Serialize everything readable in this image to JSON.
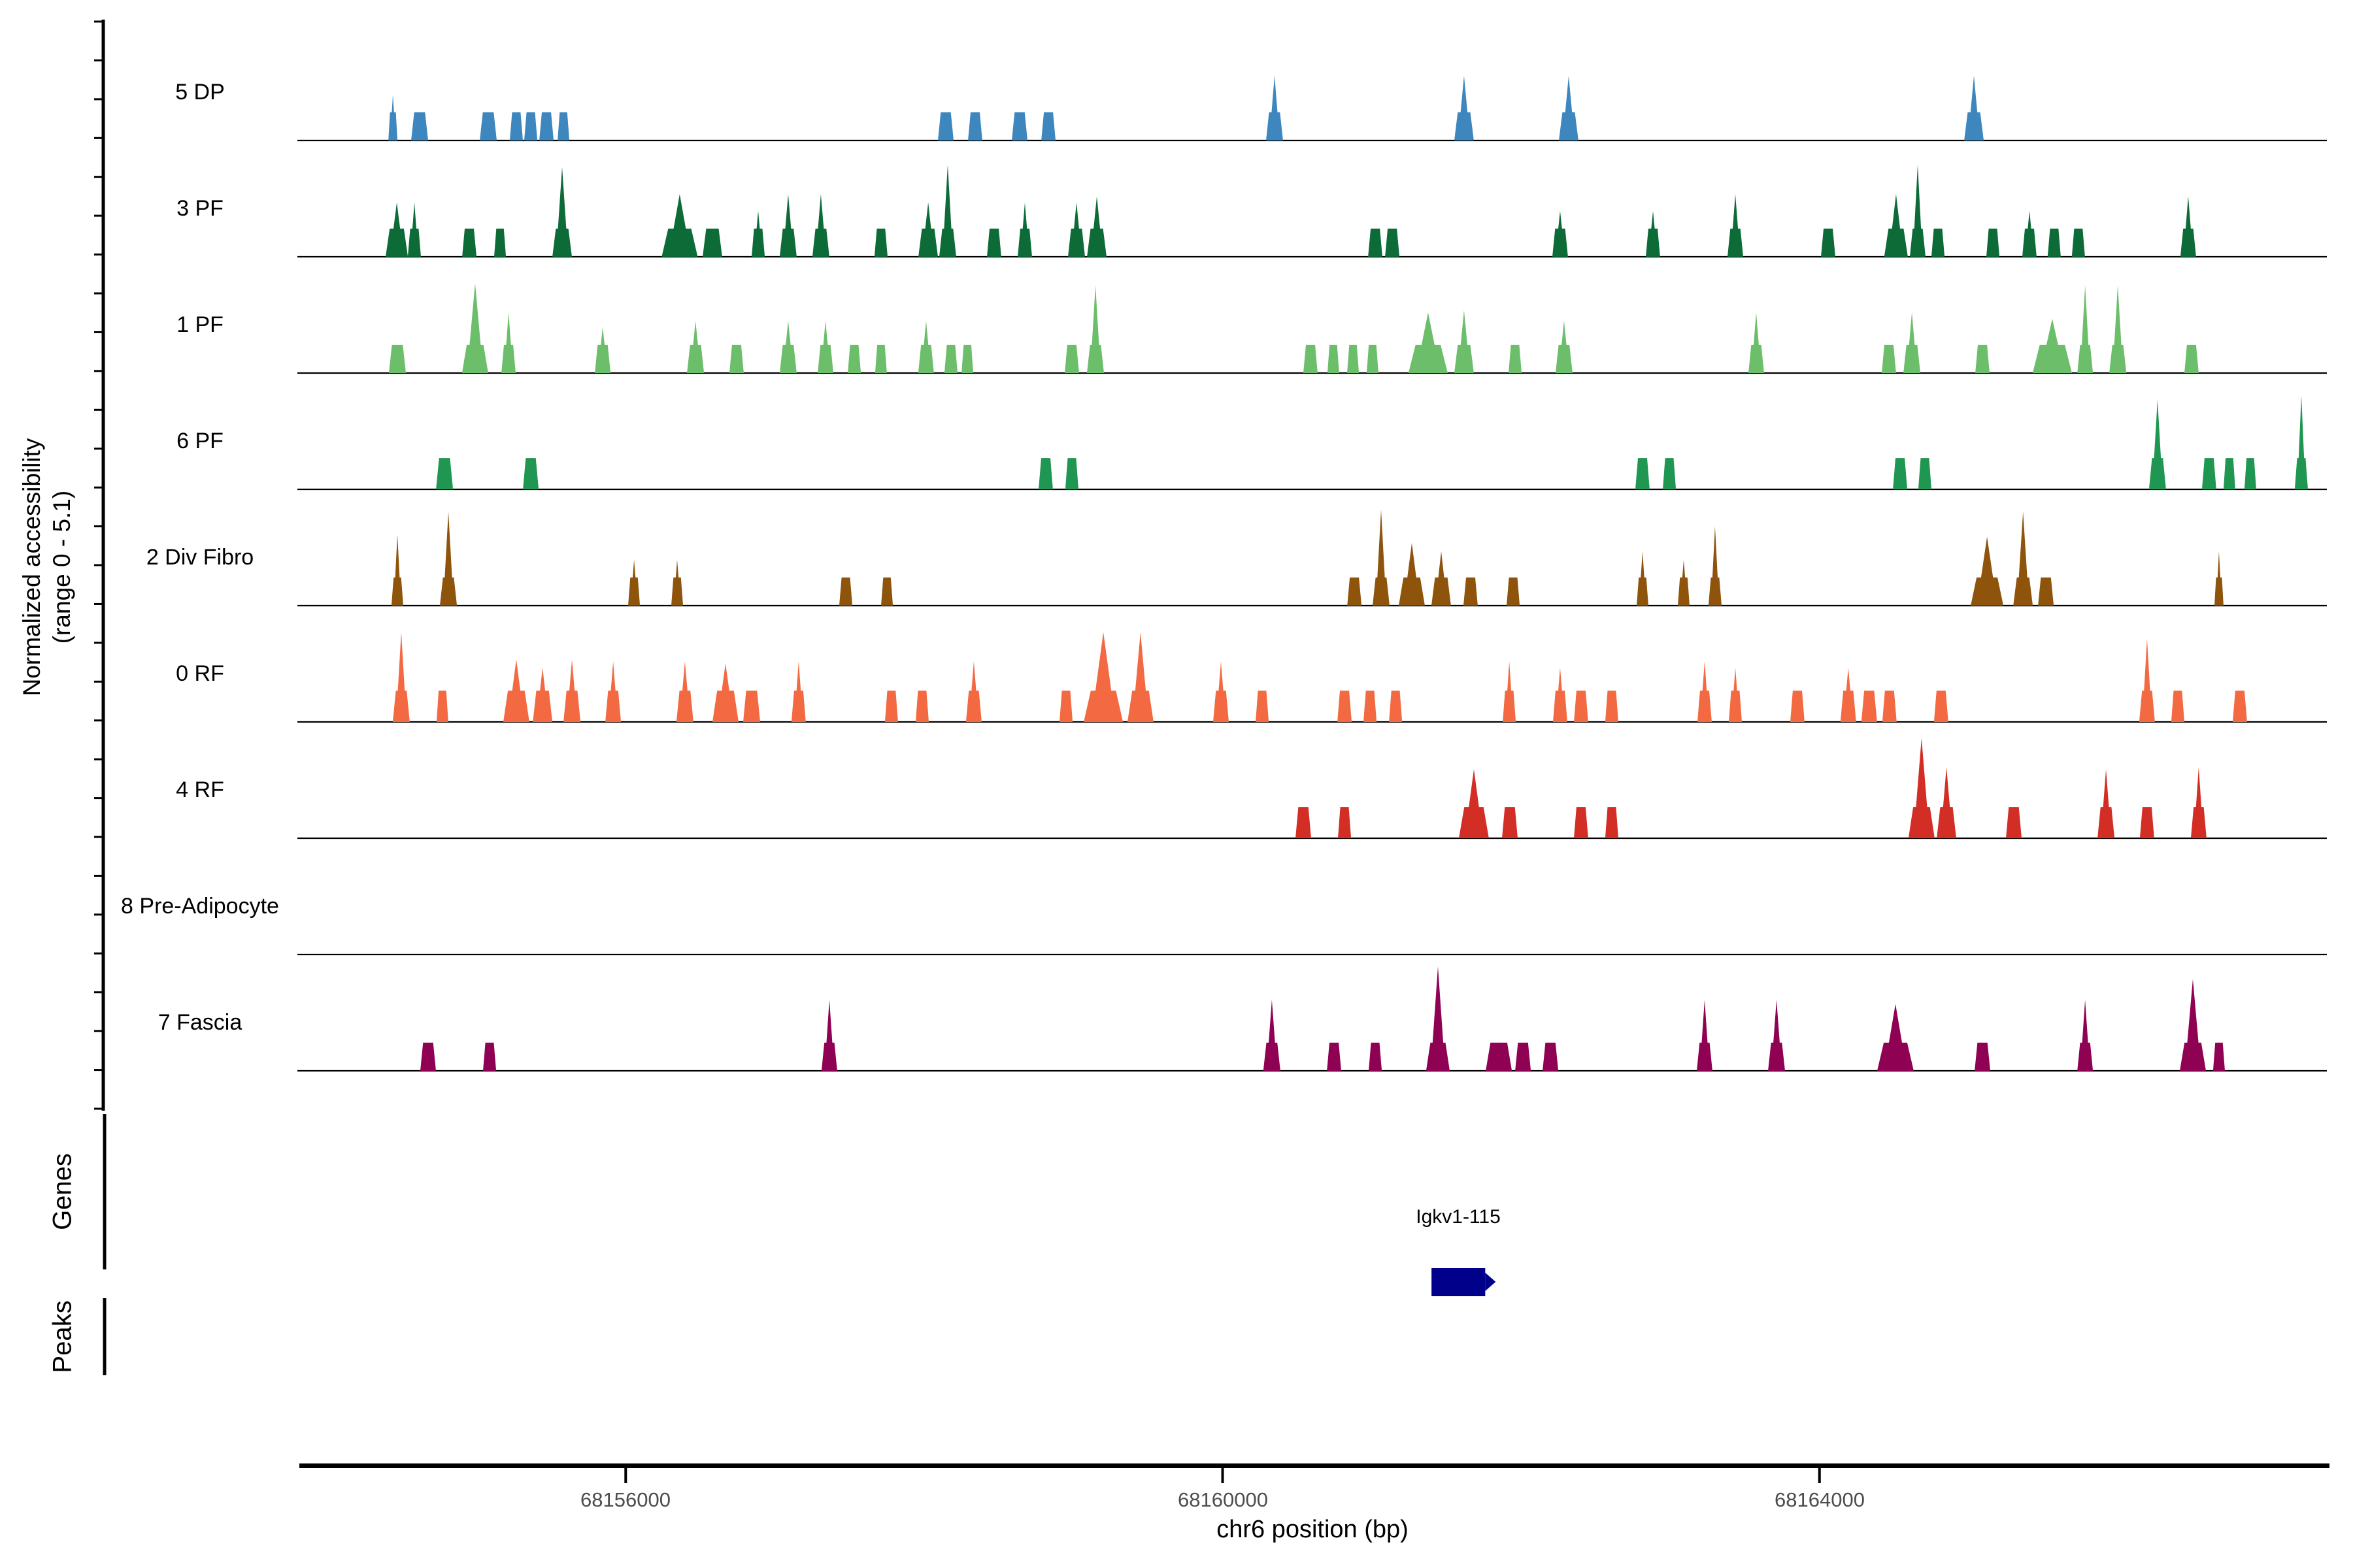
{
  "figure_type": "genome-browser-accessibility-tracks",
  "sections": {
    "accessibility_label_line1": "Normalized accessibility",
    "accessibility_label_line2": "(range 0 - 5.1)",
    "genes_label": "Genes",
    "peaks_label": "Peaks"
  },
  "chart_data": {
    "type": "area",
    "title": "",
    "region": {
      "chrom": "chr6",
      "start": 68153800,
      "end": 68167400
    },
    "x_axis": {
      "title": "chr6 position (bp)",
      "ticks": [
        68156000,
        68160000,
        68164000
      ],
      "tick_labels": [
        "68156000",
        "68160000",
        "68164000"
      ]
    },
    "y_axis": {
      "title": "Normalized accessibility",
      "subtitle": "(range 0 - 5.1)",
      "min": 0,
      "max": 5.1
    },
    "peak_format": [
      "center_bp",
      "width_bp",
      "base_height_units",
      "spike_height_units_or_0"
    ],
    "tracks": [
      {
        "label": "5 DP",
        "color": "#3D87BE",
        "peaks": [
          [
            68154440,
            61,
            1.35,
            2.2
          ],
          [
            68154619,
            114,
            1.35,
            0
          ],
          [
            68155079,
            114,
            1.35,
            0
          ],
          [
            68155267,
            88,
            1.35,
            0
          ],
          [
            68155364,
            88,
            1.35,
            0
          ],
          [
            68155469,
            96,
            1.35,
            0
          ],
          [
            68155583,
            79,
            1.35,
            0
          ],
          [
            68158145,
            105,
            1.35,
            0
          ],
          [
            68158342,
            96,
            1.35,
            0
          ],
          [
            68158640,
            105,
            1.35,
            0
          ],
          [
            68158833,
            96,
            1.35,
            0
          ],
          [
            68160348,
            114,
            1.35,
            3.1
          ],
          [
            68161618,
            131,
            1.35,
            3.1
          ],
          [
            68162319,
            131,
            1.35,
            3.1
          ],
          [
            68165035,
            131,
            1.35,
            3.1
          ]
        ]
      },
      {
        "label": "3 PF",
        "color": "#0D6B38",
        "peaks": [
          [
            68154466,
            149,
            1.35,
            2.6
          ],
          [
            68154584,
            88,
            1.35,
            2.6
          ],
          [
            68154952,
            96,
            1.35,
            0
          ],
          [
            68155158,
            79,
            1.35,
            0
          ],
          [
            68155574,
            131,
            1.35,
            4.3
          ],
          [
            68156362,
            241,
            1.35,
            3.0
          ],
          [
            68156581,
            131,
            1.35,
            0
          ],
          [
            68156888,
            88,
            1.35,
            2.2
          ],
          [
            68157089,
            114,
            1.35,
            3.0
          ],
          [
            68157308,
            114,
            1.35,
            3.0
          ],
          [
            68157711,
            88,
            1.35,
            0
          ],
          [
            68158027,
            131,
            1.35,
            2.6
          ],
          [
            68158158,
            114,
            1.35,
            4.4
          ],
          [
            68158469,
            96,
            1.35,
            0
          ],
          [
            68158675,
            96,
            1.35,
            2.6
          ],
          [
            68159021,
            114,
            1.35,
            2.6
          ],
          [
            68159157,
            131,
            1.35,
            2.9
          ],
          [
            68161023,
            96,
            1.35,
            0
          ],
          [
            68161137,
            96,
            1.35,
            0
          ],
          [
            68162262,
            105,
            1.35,
            2.2
          ],
          [
            68162884,
            96,
            1.35,
            2.2
          ],
          [
            68163436,
            105,
            1.35,
            3.0
          ],
          [
            68164058,
            96,
            1.35,
            0
          ],
          [
            68164513,
            158,
            1.35,
            3.0
          ],
          [
            68164658,
            105,
            1.35,
            4.4
          ],
          [
            68164794,
            88,
            1.35,
            0
          ],
          [
            68165162,
            88,
            1.35,
            0
          ],
          [
            68165407,
            96,
            1.35,
            2.2
          ],
          [
            68165573,
            88,
            1.35,
            0
          ],
          [
            68165735,
            88,
            1.35,
            0
          ],
          [
            68166471,
            105,
            1.35,
            2.9
          ]
        ]
      },
      {
        "label": "1 PF",
        "color": "#6CBE6B",
        "peaks": [
          [
            68154470,
            114,
            1.35,
            0
          ],
          [
            68154991,
            175,
            1.35,
            4.3
          ],
          [
            68155215,
            96,
            1.35,
            2.9
          ],
          [
            68155846,
            105,
            1.35,
            2.2
          ],
          [
            68156468,
            114,
            1.35,
            2.5
          ],
          [
            68156743,
            96,
            1.35,
            0
          ],
          [
            68157089,
            114,
            1.35,
            2.5
          ],
          [
            68157339,
            105,
            1.35,
            2.5
          ],
          [
            68157532,
            88,
            1.35,
            0
          ],
          [
            68157711,
            79,
            1.35,
            0
          ],
          [
            68158013,
            105,
            1.35,
            2.5
          ],
          [
            68158180,
            88,
            1.35,
            0
          ],
          [
            68158290,
            79,
            1.35,
            0
          ],
          [
            68158990,
            96,
            1.35,
            0
          ],
          [
            68159148,
            114,
            1.35,
            4.2
          ],
          [
            68160589,
            96,
            1.35,
            0
          ],
          [
            68160742,
            79,
            1.35,
            0
          ],
          [
            68160874,
            79,
            1.35,
            0
          ],
          [
            68161005,
            79,
            1.35,
            0
          ],
          [
            68161377,
            263,
            1.35,
            2.9
          ],
          [
            68161618,
            131,
            1.35,
            3.0
          ],
          [
            68161960,
            88,
            1.35,
            0
          ],
          [
            68162288,
            114,
            1.35,
            2.5
          ],
          [
            68163576,
            105,
            1.35,
            2.9
          ],
          [
            68164465,
            96,
            1.35,
            0
          ],
          [
            68164619,
            114,
            1.35,
            2.9
          ],
          [
            68165092,
            96,
            1.35,
            0
          ],
          [
            68165560,
            263,
            1.35,
            2.6
          ],
          [
            68165780,
            105,
            1.35,
            4.2
          ],
          [
            68165999,
            114,
            1.35,
            4.2
          ],
          [
            68166493,
            96,
            1.35,
            0
          ]
        ]
      },
      {
        "label": "6 PF",
        "color": "#1F9651",
        "peaks": [
          [
            68154786,
            114,
            1.5,
            0
          ],
          [
            68155364,
            105,
            1.5,
            0
          ],
          [
            68158815,
            96,
            1.5,
            0
          ],
          [
            68158990,
            88,
            1.5,
            0
          ],
          [
            68162814,
            96,
            1.5,
            0
          ],
          [
            68162994,
            88,
            1.5,
            0
          ],
          [
            68164540,
            96,
            1.5,
            0
          ],
          [
            68164706,
            88,
            1.5,
            0
          ],
          [
            68166265,
            114,
            1.5,
            4.3
          ],
          [
            68166611,
            96,
            1.5,
            0
          ],
          [
            68166747,
            79,
            1.5,
            0
          ],
          [
            68166887,
            79,
            1.5,
            0
          ],
          [
            68167229,
            88,
            1.5,
            4.5
          ]
        ]
      },
      {
        "label": "2 Div Fibro",
        "color": "#8E540C",
        "peaks": [
          [
            68154470,
            79,
            1.35,
            3.4
          ],
          [
            68154812,
            114,
            1.35,
            4.5
          ],
          [
            68156056,
            79,
            1.35,
            2.2
          ],
          [
            68156345,
            79,
            1.35,
            2.2
          ],
          [
            68157475,
            88,
            1.35,
            0
          ],
          [
            68157751,
            79,
            1.35,
            0
          ],
          [
            68160883,
            96,
            1.35,
            0
          ],
          [
            68161062,
            114,
            1.35,
            4.6
          ],
          [
            68161268,
            175,
            1.35,
            3.0
          ],
          [
            68161465,
            131,
            1.35,
            2.6
          ],
          [
            68161662,
            96,
            1.35,
            0
          ],
          [
            68161947,
            88,
            1.35,
            0
          ],
          [
            68162814,
            79,
            1.35,
            2.6
          ],
          [
            68163090,
            79,
            1.35,
            2.2
          ],
          [
            68163300,
            88,
            1.35,
            3.8
          ],
          [
            68165123,
            219,
            1.35,
            3.3
          ],
          [
            68165364,
            131,
            1.35,
            4.5
          ],
          [
            68165517,
            105,
            1.35,
            0
          ],
          [
            68166677,
            61,
            1.35,
            2.6
          ]
        ]
      },
      {
        "label": "0 RF",
        "color": "#F36A42",
        "peaks": [
          [
            68154496,
            114,
            1.5,
            4.3
          ],
          [
            68154772,
            79,
            1.5,
            0
          ],
          [
            68155267,
            175,
            1.5,
            3.0
          ],
          [
            68155443,
            131,
            1.5,
            2.6
          ],
          [
            68155640,
            114,
            1.5,
            3.0
          ],
          [
            68155916,
            105,
            1.5,
            2.9
          ],
          [
            68156397,
            114,
            1.5,
            2.9
          ],
          [
            68156669,
            175,
            1.5,
            2.8
          ],
          [
            68156844,
            114,
            1.5,
            0
          ],
          [
            68157159,
            96,
            1.5,
            2.9
          ],
          [
            68157781,
            88,
            1.5,
            0
          ],
          [
            68157987,
            88,
            1.5,
            0
          ],
          [
            68158333,
            105,
            1.5,
            2.9
          ],
          [
            68158951,
            88,
            1.5,
            0
          ],
          [
            68159201,
            263,
            1.5,
            4.3
          ],
          [
            68159450,
            175,
            1.5,
            4.3
          ],
          [
            68159989,
            105,
            1.5,
            2.9
          ],
          [
            68160265,
            88,
            1.5,
            0
          ],
          [
            68160817,
            96,
            1.5,
            0
          ],
          [
            68160988,
            88,
            1.5,
            0
          ],
          [
            68161159,
            88,
            1.5,
            0
          ],
          [
            68161921,
            88,
            1.5,
            2.9
          ],
          [
            68162262,
            96,
            1.5,
            2.6
          ],
          [
            68162402,
            96,
            1.5,
            0
          ],
          [
            68162608,
            88,
            1.5,
            0
          ],
          [
            68163230,
            96,
            1.5,
            2.9
          ],
          [
            68163436,
            88,
            1.5,
            2.6
          ],
          [
            68163852,
            96,
            1.5,
            0
          ],
          [
            68164193,
            105,
            1.5,
            2.6
          ],
          [
            68164333,
            105,
            1.5,
            0
          ],
          [
            68164469,
            96,
            1.5,
            0
          ],
          [
            68164815,
            96,
            1.5,
            0
          ],
          [
            68166195,
            105,
            1.5,
            4.0
          ],
          [
            68166401,
            88,
            1.5,
            0
          ],
          [
            68166817,
            96,
            1.5,
            0
          ]
        ]
      },
      {
        "label": "4 RF",
        "color": "#D32E26",
        "peaks": [
          [
            68160541,
            105,
            1.5,
            0
          ],
          [
            68160817,
            88,
            1.5,
            0
          ],
          [
            68161684,
            201,
            1.5,
            3.3
          ],
          [
            68161925,
            105,
            1.5,
            0
          ],
          [
            68162402,
            96,
            1.5,
            0
          ],
          [
            68162608,
            88,
            1.5,
            0
          ],
          [
            68164684,
            175,
            1.5,
            4.8
          ],
          [
            68164851,
            131,
            1.5,
            3.4
          ],
          [
            68165302,
            105,
            1.5,
            0
          ],
          [
            68165920,
            114,
            1.5,
            3.3
          ],
          [
            68166195,
            96,
            1.5,
            0
          ],
          [
            68166541,
            105,
            1.5,
            3.4
          ]
        ]
      },
      {
        "label": "8 Pre-Adipocyte",
        "color": null,
        "peaks": []
      },
      {
        "label": "7 Fascia",
        "color": "#8F0153",
        "peaks": [
          [
            68154676,
            105,
            1.35,
            0
          ],
          [
            68155088,
            88,
            1.35,
            0
          ],
          [
            68157365,
            105,
            1.35,
            3.4
          ],
          [
            68160330,
            114,
            1.35,
            3.4
          ],
          [
            68160747,
            96,
            1.35,
            0
          ],
          [
            68161023,
            88,
            1.35,
            0
          ],
          [
            68161443,
            158,
            1.35,
            5.0
          ],
          [
            68161851,
            175,
            1.35,
            0
          ],
          [
            68162013,
            105,
            1.35,
            0
          ],
          [
            68162197,
            105,
            1.35,
            0
          ],
          [
            68163230,
            105,
            1.35,
            3.4
          ],
          [
            68163712,
            114,
            1.35,
            3.4
          ],
          [
            68164509,
            245,
            1.35,
            3.2
          ],
          [
            68165092,
            105,
            1.35,
            0
          ],
          [
            68165780,
            105,
            1.35,
            3.4
          ],
          [
            68166502,
            175,
            1.35,
            4.4
          ],
          [
            68166677,
            79,
            1.35,
            0
          ]
        ]
      }
    ],
    "genes": [
      {
        "name": "Igkv1-115",
        "start": 68161400,
        "end": 68161760,
        "strand": "+",
        "color": "#00008B"
      }
    ],
    "peaks_row": {
      "entries": []
    }
  }
}
